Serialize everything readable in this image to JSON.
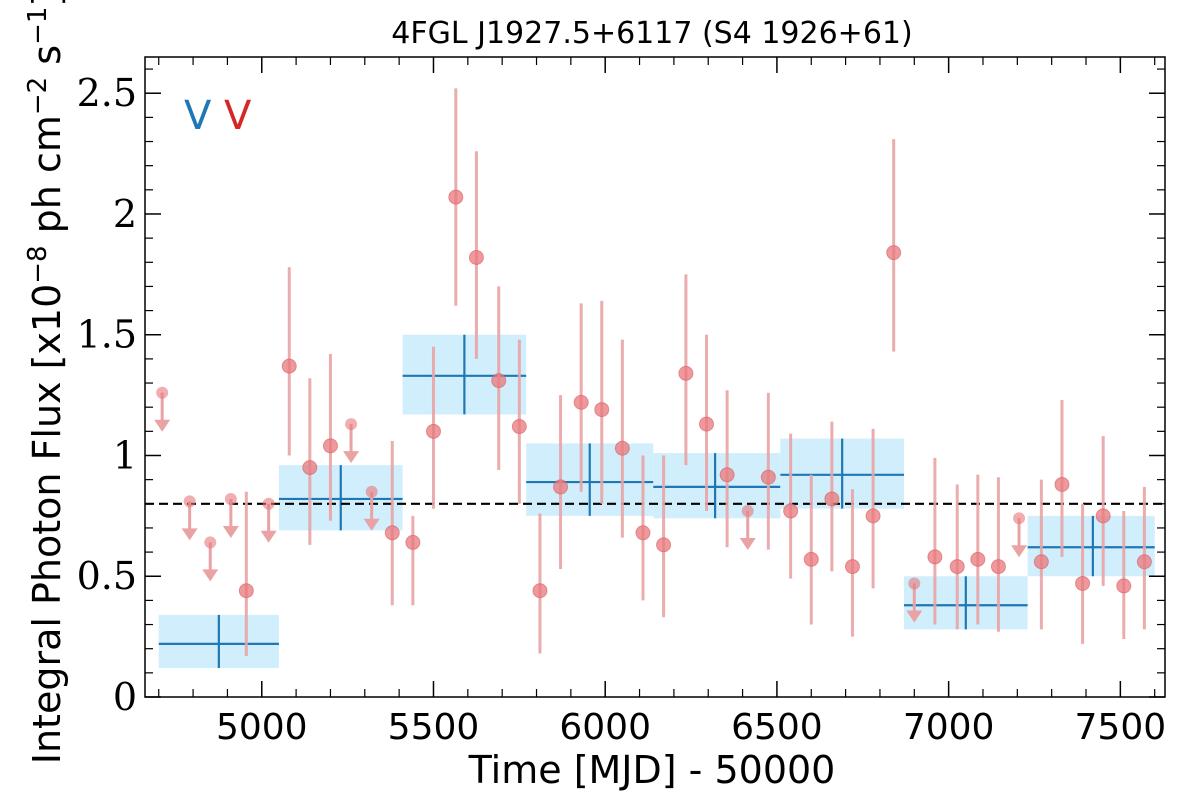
{
  "chart_data": {
    "type": "scatter",
    "title": "4FGL J1927.5+6117 (S4 1926+61)",
    "xlabel": "Time [MJD] - 50000",
    "ylabel": "Integral Photon Flux [x10",
    "ylabel_exp1": "−8",
    "ylabel_mid": " ph cm",
    "ylabel_exp2": "−2",
    "ylabel_mid2": " s",
    "ylabel_exp3": "−1",
    "ylabel_end": "]",
    "xlim": [
      4660,
      7630
    ],
    "ylim": [
      0,
      2.65
    ],
    "x_ticks": [
      5000,
      5500,
      6000,
      6500,
      7000,
      7500
    ],
    "y_ticks": [
      {
        "v": 0,
        "label": "0"
      },
      {
        "v": 0.5,
        "label": "0.5"
      },
      {
        "v": 1,
        "label": "1"
      },
      {
        "v": 1.5,
        "label": "1.5"
      },
      {
        "v": 2,
        "label": "2"
      },
      {
        "v": 2.5,
        "label": "2.5"
      }
    ],
    "reference_level": 0.8,
    "legend_markers": [
      {
        "text": "V",
        "color": "#1f77b4"
      },
      {
        "text": "V",
        "color": "#d62728"
      }
    ],
    "colors": {
      "points": "#e8787c",
      "errorbars": "#e9a3a5",
      "bins_fill": "#d0eefc",
      "bins_line": "#1f77b4",
      "reference": "#000000"
    },
    "series": [
      {
        "kind": "binned",
        "bins": [
          {
            "x0": 4700,
            "x1": 5050,
            "xc": 4875,
            "y": 0.22,
            "ylo": 0.12,
            "yhi": 0.34
          },
          {
            "x0": 5050,
            "x1": 5410,
            "xc": 5230,
            "y": 0.82,
            "ylo": 0.69,
            "yhi": 0.96
          },
          {
            "x0": 5410,
            "x1": 5770,
            "xc": 5590,
            "y": 1.33,
            "ylo": 1.17,
            "yhi": 1.5
          },
          {
            "x0": 5770,
            "x1": 6140,
            "xc": 5955,
            "y": 0.89,
            "ylo": 0.75,
            "yhi": 1.05
          },
          {
            "x0": 6140,
            "x1": 6510,
            "xc": 6320,
            "y": 0.87,
            "ylo": 0.74,
            "yhi": 1.01
          },
          {
            "x0": 6510,
            "x1": 6870,
            "xc": 6690,
            "y": 0.92,
            "ylo": 0.78,
            "yhi": 1.07
          },
          {
            "x0": 6870,
            "x1": 7230,
            "xc": 7050,
            "y": 0.38,
            "ylo": 0.28,
            "yhi": 0.5
          },
          {
            "x0": 7230,
            "x1": 7600,
            "xc": 7420,
            "y": 0.62,
            "ylo": 0.5,
            "yhi": 0.75
          }
        ]
      },
      {
        "kind": "points",
        "points": [
          {
            "x": 5080,
            "y": 1.37,
            "lo": 1.0,
            "hi": 1.78
          },
          {
            "x": 5140,
            "y": 0.95,
            "lo": 0.63,
            "hi": 1.32
          },
          {
            "x": 5200,
            "y": 1.04,
            "lo": 0.73,
            "hi": 1.42
          },
          {
            "x": 5380,
            "y": 0.68,
            "lo": 0.38,
            "hi": 1.06
          },
          {
            "x": 5440,
            "y": 0.64,
            "lo": 0.38,
            "hi": 0.75
          },
          {
            "x": 5500,
            "y": 1.1,
            "lo": 0.78,
            "hi": 1.45
          },
          {
            "x": 5565,
            "y": 2.07,
            "lo": 1.62,
            "hi": 2.52
          },
          {
            "x": 5625,
            "y": 1.82,
            "lo": 1.4,
            "hi": 2.26
          },
          {
            "x": 5690,
            "y": 1.31,
            "lo": 0.94,
            "hi": 1.7
          },
          {
            "x": 5750,
            "y": 1.12,
            "lo": 0.8,
            "hi": 1.48
          },
          {
            "x": 4955,
            "y": 0.44,
            "lo": 0.17,
            "hi": 0.85
          },
          {
            "x": 5810,
            "y": 0.44,
            "lo": 0.18,
            "hi": 0.76
          },
          {
            "x": 5870,
            "y": 0.87,
            "lo": 0.53,
            "hi": 1.25
          },
          {
            "x": 5930,
            "y": 1.22,
            "lo": 0.85,
            "hi": 1.63
          },
          {
            "x": 5990,
            "y": 1.19,
            "lo": 0.8,
            "hi": 1.64
          },
          {
            "x": 6050,
            "y": 1.03,
            "lo": 0.66,
            "hi": 1.48
          },
          {
            "x": 6110,
            "y": 0.68,
            "lo": 0.4,
            "hi": 1.0
          },
          {
            "x": 6170,
            "y": 0.63,
            "lo": 0.33,
            "hi": 1.0
          },
          {
            "x": 6235,
            "y": 1.34,
            "lo": 0.96,
            "hi": 1.75
          },
          {
            "x": 6295,
            "y": 1.13,
            "lo": 0.77,
            "hi": 1.5
          },
          {
            "x": 6355,
            "y": 0.92,
            "lo": 0.62,
            "hi": 1.27
          },
          {
            "x": 6475,
            "y": 0.91,
            "lo": 0.61,
            "hi": 1.26
          },
          {
            "x": 6540,
            "y": 0.77,
            "lo": 0.49,
            "hi": 1.09
          },
          {
            "x": 6600,
            "y": 0.57,
            "lo": 0.3,
            "hi": 0.92
          },
          {
            "x": 6660,
            "y": 0.82,
            "lo": 0.52,
            "hi": 1.14
          },
          {
            "x": 6720,
            "y": 0.54,
            "lo": 0.25,
            "hi": 0.86
          },
          {
            "x": 6780,
            "y": 0.75,
            "lo": 0.45,
            "hi": 1.11
          },
          {
            "x": 6840,
            "y": 1.84,
            "lo": 1.43,
            "hi": 2.31
          },
          {
            "x": 6960,
            "y": 0.58,
            "lo": 0.3,
            "hi": 0.99
          },
          {
            "x": 7025,
            "y": 0.54,
            "lo": 0.28,
            "hi": 0.88
          },
          {
            "x": 7085,
            "y": 0.57,
            "lo": 0.3,
            "hi": 0.92
          },
          {
            "x": 7145,
            "y": 0.54,
            "lo": 0.27,
            "hi": 0.91
          },
          {
            "x": 7270,
            "y": 0.56,
            "lo": 0.28,
            "hi": 0.9
          },
          {
            "x": 7330,
            "y": 0.88,
            "lo": 0.58,
            "hi": 1.23
          },
          {
            "x": 7390,
            "y": 0.47,
            "lo": 0.22,
            "hi": 0.8
          },
          {
            "x": 7450,
            "y": 0.75,
            "lo": 0.46,
            "hi": 1.08
          },
          {
            "x": 7510,
            "y": 0.46,
            "lo": 0.24,
            "hi": 0.77
          },
          {
            "x": 7570,
            "y": 0.56,
            "lo": 0.28,
            "hi": 0.87
          }
        ]
      },
      {
        "kind": "upper_limits",
        "points": [
          {
            "x": 4710,
            "y": 1.26
          },
          {
            "x": 4790,
            "y": 0.81
          },
          {
            "x": 4850,
            "y": 0.64
          },
          {
            "x": 4910,
            "y": 0.82
          },
          {
            "x": 5020,
            "y": 0.8
          },
          {
            "x": 5260,
            "y": 1.13
          },
          {
            "x": 5320,
            "y": 0.85
          },
          {
            "x": 6415,
            "y": 0.77
          },
          {
            "x": 6900,
            "y": 0.47
          },
          {
            "x": 7205,
            "y": 0.74
          }
        ]
      }
    ]
  }
}
